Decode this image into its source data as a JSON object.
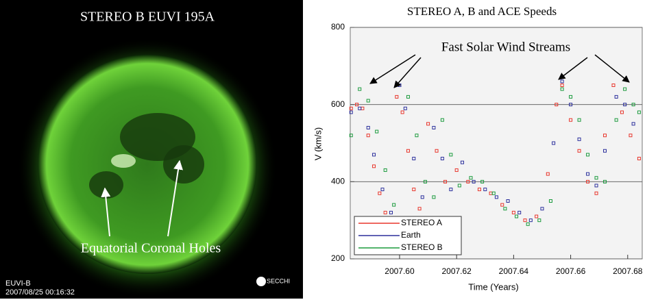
{
  "image_panel": {
    "title": "STEREO B EUVI 195A",
    "annotation": "Equatorial Coronal Holes",
    "instrument": "EUVI-B",
    "timestamp": "2007/08/25 00:16:32",
    "logo": "SECCHI"
  },
  "chart_data": {
    "type": "scatter",
    "title": "STEREO A, B and ACE Speeds",
    "annotation": "Fast Solar Wind Streams",
    "x_label": "Time (Years)",
    "y_label": "V (km/s)",
    "xlim": [
      2007.5827,
      2007.6851
    ],
    "ylim": [
      200,
      800
    ],
    "xticks": [
      {
        "value": 2007.6,
        "label": "2007.60"
      },
      2007.62,
      2007.64,
      2007.66,
      2007.68
    ],
    "yticks": [
      200,
      400,
      600,
      800
    ],
    "grid": true,
    "legend": "lower left",
    "series": [
      {
        "name": "STEREO A",
        "color": "#e8352b",
        "x": [
          2007.583,
          2007.585,
          2007.587,
          2007.589,
          2007.591,
          2007.593,
          2007.595,
          2007.599,
          2007.601,
          2007.603,
          2007.605,
          2007.607,
          2007.61,
          2007.613,
          2007.616,
          2007.62,
          2007.624,
          2007.628,
          2007.632,
          2007.636,
          2007.64,
          2007.644,
          2007.648,
          2007.652,
          2007.655,
          2007.657,
          2007.66,
          2007.663,
          2007.666,
          2007.669,
          2007.672,
          2007.675,
          2007.678,
          2007.681,
          2007.684
        ],
        "values": [
          590,
          600,
          590,
          520,
          440,
          370,
          320,
          620,
          580,
          480,
          380,
          330,
          550,
          480,
          400,
          430,
          400,
          380,
          370,
          340,
          320,
          300,
          310,
          420,
          600,
          650,
          560,
          480,
          400,
          370,
          520,
          650,
          580,
          520,
          460
        ]
      },
      {
        "name": "Earth",
        "color": "#2b2f9c",
        "x": [
          2007.583,
          2007.586,
          2007.589,
          2007.591,
          2007.594,
          2007.597,
          2007.6,
          2007.602,
          2007.605,
          2007.608,
          2007.612,
          2007.615,
          2007.618,
          2007.622,
          2007.626,
          2007.63,
          2007.634,
          2007.638,
          2007.642,
          2007.646,
          2007.65,
          2007.654,
          2007.657,
          2007.66,
          2007.663,
          2007.666,
          2007.669,
          2007.672,
          2007.676,
          2007.679,
          2007.682
        ],
        "values": [
          580,
          590,
          540,
          470,
          380,
          320,
          650,
          590,
          460,
          360,
          540,
          460,
          380,
          450,
          400,
          380,
          360,
          350,
          320,
          300,
          330,
          500,
          660,
          600,
          510,
          420,
          390,
          480,
          620,
          600,
          550
        ]
      },
      {
        "name": "STEREO B",
        "color": "#1a9a3c",
        "x": [
          2007.583,
          2007.586,
          2007.589,
          2007.592,
          2007.595,
          2007.598,
          2007.603,
          2007.606,
          2007.609,
          2007.612,
          2007.615,
          2007.618,
          2007.621,
          2007.625,
          2007.629,
          2007.633,
          2007.637,
          2007.641,
          2007.645,
          2007.649,
          2007.653,
          2007.657,
          2007.66,
          2007.663,
          2007.666,
          2007.669,
          2007.672,
          2007.676,
          2007.679,
          2007.682,
          2007.684
        ],
        "values": [
          520,
          640,
          610,
          530,
          430,
          340,
          620,
          520,
          400,
          360,
          560,
          470,
          390,
          410,
          400,
          370,
          330,
          310,
          290,
          300,
          350,
          640,
          620,
          560,
          470,
          410,
          400,
          560,
          640,
          600,
          580
        ]
      }
    ]
  }
}
